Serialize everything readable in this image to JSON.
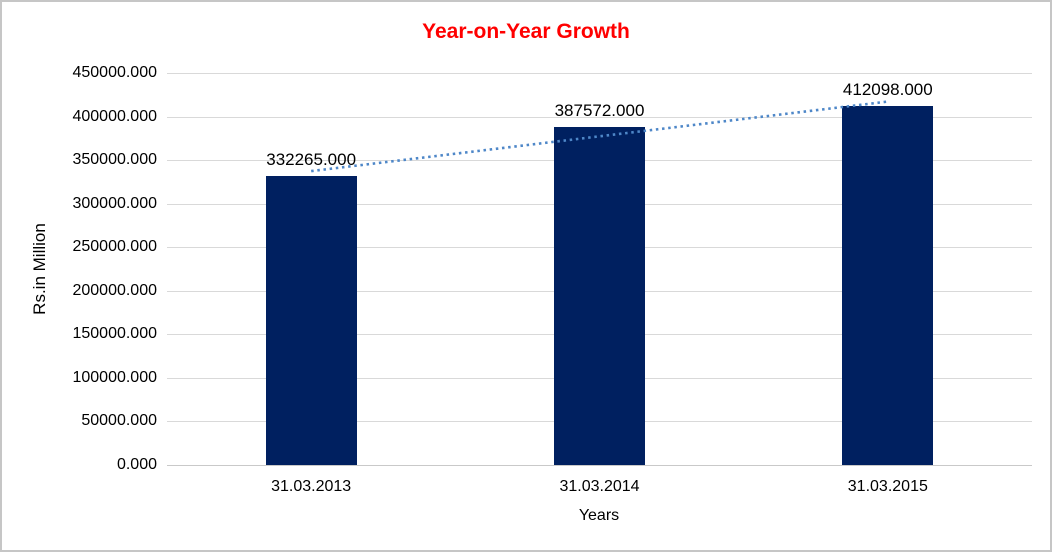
{
  "window": {
    "background_color": "#FFFFFF",
    "border_color": "#C6C6C6"
  },
  "chart_data": {
    "type": "bar",
    "title": "Year-on-Year Growth",
    "title_color": "#FF0000",
    "categories": [
      "31.03.2013",
      "31.03.2014",
      "31.03.2015"
    ],
    "values": [
      332265.0,
      387572.0,
      412098.0
    ],
    "data_labels": [
      "332265.000",
      "387572.000",
      "412098.000"
    ],
    "xlabel": "Years",
    "ylabel": "Rs.in Million",
    "ylim": [
      0,
      450000
    ],
    "ytick_step": 50000,
    "ytick_values": [
      0,
      50000,
      100000,
      150000,
      200000,
      250000,
      300000,
      350000,
      400000,
      450000
    ],
    "ytick_labels": [
      "0.000",
      "50000.000",
      "100000.000",
      "150000.000",
      "200000.000",
      "250000.000",
      "300000.000",
      "350000.000",
      "400000.000",
      "450000.000"
    ],
    "bar_color": "#002060",
    "grid": "horizontal",
    "grid_color": "#D9D9D9",
    "legend": "none",
    "trendline": {
      "type": "linear",
      "style": "dotted",
      "color": "#4E87C8"
    }
  }
}
